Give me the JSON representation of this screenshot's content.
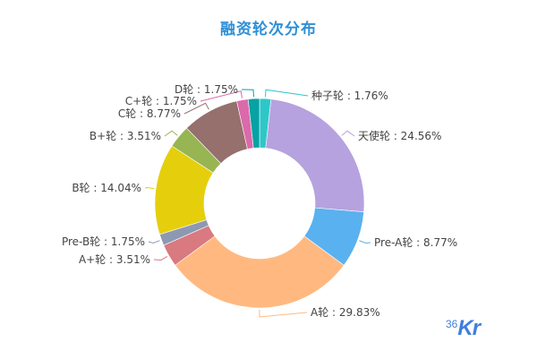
{
  "title": "融资轮次分布",
  "logo": {
    "num": "36",
    "letters": "Kr"
  },
  "chart_data": {
    "type": "pie",
    "variant": "donut",
    "title": "融资轮次分布",
    "categories": [
      "种子轮",
      "天使轮",
      "Pre-A轮",
      "A轮",
      "A+轮",
      "Pre-B轮",
      "B轮",
      "B+轮",
      "C轮",
      "C+轮",
      "D轮"
    ],
    "values": [
      1.76,
      24.56,
      8.77,
      29.83,
      3.51,
      1.75,
      14.04,
      3.51,
      8.77,
      1.75,
      1.75
    ],
    "unit": "%",
    "colors": [
      "#2ec7c9",
      "#b6a2de",
      "#5ab1ef",
      "#ffb980",
      "#d87a80",
      "#8d98b3",
      "#e5cf0d",
      "#97b552",
      "#95706d",
      "#dc69aa",
      "#07a2a4"
    ],
    "labels": [
      "种子轮 : 1.76%",
      "天使轮 : 24.56%",
      "Pre-A轮 : 8.77%",
      "A轮 : 29.83%",
      "A+轮 : 3.51%",
      "Pre-B轮 : 1.75%",
      "B轮 : 14.04%",
      "B+轮 : 3.51%",
      "C轮 : 8.77%",
      "C+轮 : 1.75%",
      "D轮 : 1.75%"
    ],
    "legend": "none (outside labels with leader lines)",
    "start_angle": "top, clockwise"
  }
}
